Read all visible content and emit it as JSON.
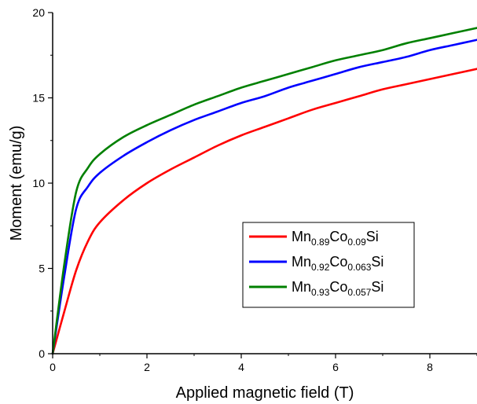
{
  "chart_data": {
    "type": "line",
    "xlabel": "Applied magnetic field (T)",
    "ylabel": "Moment (emu/g)",
    "xlim": [
      0,
      9
    ],
    "ylim": [
      0,
      20
    ],
    "x_ticks": [
      0,
      2,
      4,
      6,
      8
    ],
    "x_tick_labels": [
      "0",
      "2",
      "4",
      "6",
      "8"
    ],
    "y_ticks": [
      0,
      5,
      10,
      15,
      20
    ],
    "y_tick_labels": [
      "0",
      "5",
      "10",
      "15",
      "20"
    ],
    "grid": false,
    "legend_position": "center-right",
    "x": [
      0,
      0.25,
      0.5,
      0.75,
      1,
      1.5,
      2,
      2.5,
      3,
      3.5,
      4,
      4.5,
      5,
      5.5,
      6,
      6.5,
      7,
      7.5,
      8,
      8.5,
      9
    ],
    "series": [
      {
        "name": "Mn0.89Co0.09Si",
        "legend_parts": [
          {
            "text": "Mn",
            "sub": false
          },
          {
            "text": "0.89",
            "sub": true
          },
          {
            "text": "Co",
            "sub": false
          },
          {
            "text": "0.09",
            "sub": true
          },
          {
            "text": "Si",
            "sub": false
          }
        ],
        "color": "#ff0000",
        "values": [
          0,
          2.5,
          4.9,
          6.6,
          7.7,
          9.0,
          10.0,
          10.8,
          11.5,
          12.2,
          12.8,
          13.3,
          13.8,
          14.3,
          14.7,
          15.1,
          15.5,
          15.8,
          16.1,
          16.4,
          16.7
        ]
      },
      {
        "name": "Mn0.92Co0.063Si",
        "legend_parts": [
          {
            "text": "Mn",
            "sub": false
          },
          {
            "text": "0.92",
            "sub": true
          },
          {
            "text": "Co",
            "sub": false
          },
          {
            "text": "0.063",
            "sub": true
          },
          {
            "text": "Si",
            "sub": false
          }
        ],
        "color": "#0000ff",
        "values": [
          0,
          4.6,
          8.5,
          9.8,
          10.6,
          11.6,
          12.4,
          13.1,
          13.7,
          14.2,
          14.7,
          15.1,
          15.6,
          16.0,
          16.4,
          16.8,
          17.1,
          17.4,
          17.8,
          18.1,
          18.4
        ]
      },
      {
        "name": "Mn0.93Co0.057Si",
        "legend_parts": [
          {
            "text": "Mn",
            "sub": false
          },
          {
            "text": "0.93",
            "sub": true
          },
          {
            "text": "Co",
            "sub": false
          },
          {
            "text": "0.057",
            "sub": true
          },
          {
            "text": "Si",
            "sub": false
          }
        ],
        "color": "#008000",
        "values": [
          0,
          5.3,
          9.5,
          10.9,
          11.7,
          12.7,
          13.4,
          14.0,
          14.6,
          15.1,
          15.6,
          16.0,
          16.4,
          16.8,
          17.2,
          17.5,
          17.8,
          18.2,
          18.5,
          18.8,
          19.1
        ]
      }
    ]
  }
}
